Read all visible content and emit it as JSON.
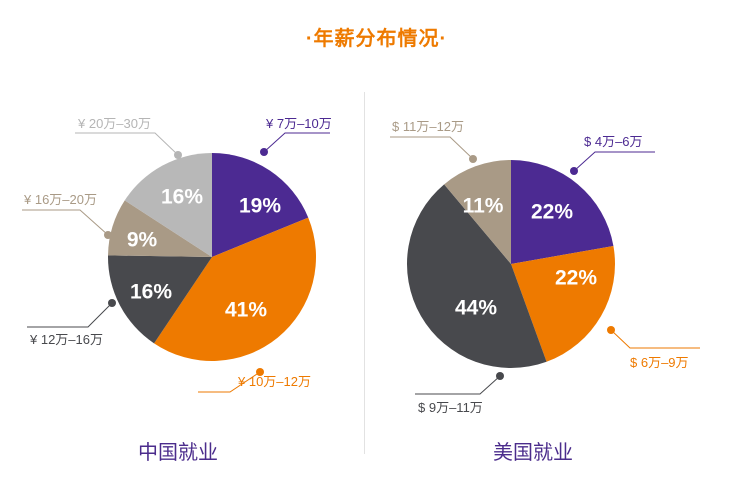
{
  "title": "·年薪分布情况·",
  "colors": {
    "purple": "#4c2a92",
    "orange": "#ee7a00",
    "gray": "#b8b8b8",
    "tan": "#a99a86",
    "dark": "#48494d",
    "title": "#ee7a00",
    "subtitle": "#4b2c8c"
  },
  "chart_data": [
    {
      "type": "pie",
      "title": "中国就业",
      "slices": [
        {
          "label": "¥ 7万–10万",
          "value": 19,
          "display": "19%",
          "color": "#4c2a92"
        },
        {
          "label": "¥ 10万–12万",
          "value": 41,
          "display": "41%",
          "color": "#ee7a00"
        },
        {
          "label": "¥ 12万–16万",
          "value": 16,
          "display": "16%",
          "color": "#48494d"
        },
        {
          "label": "¥ 16万–20万",
          "value": 9,
          "display": "9%",
          "color": "#a99a86"
        },
        {
          "label": "¥ 20万–30万",
          "value": 16,
          "display": "16%",
          "color": "#b8b8b8"
        }
      ]
    },
    {
      "type": "pie",
      "title": "美国就业",
      "slices": [
        {
          "label": "$ 4万–6万",
          "value": 22,
          "display": "22%",
          "color": "#4c2a92"
        },
        {
          "label": "$ 6万–9万",
          "value": 22,
          "display": "22%",
          "color": "#ee7a00"
        },
        {
          "label": "$ 9万–11万",
          "value": 44,
          "display": "44%",
          "color": "#48494d"
        },
        {
          "label": "$ 11万–12万",
          "value": 11,
          "display": "11%",
          "color": "#a99a86"
        }
      ]
    }
  ]
}
